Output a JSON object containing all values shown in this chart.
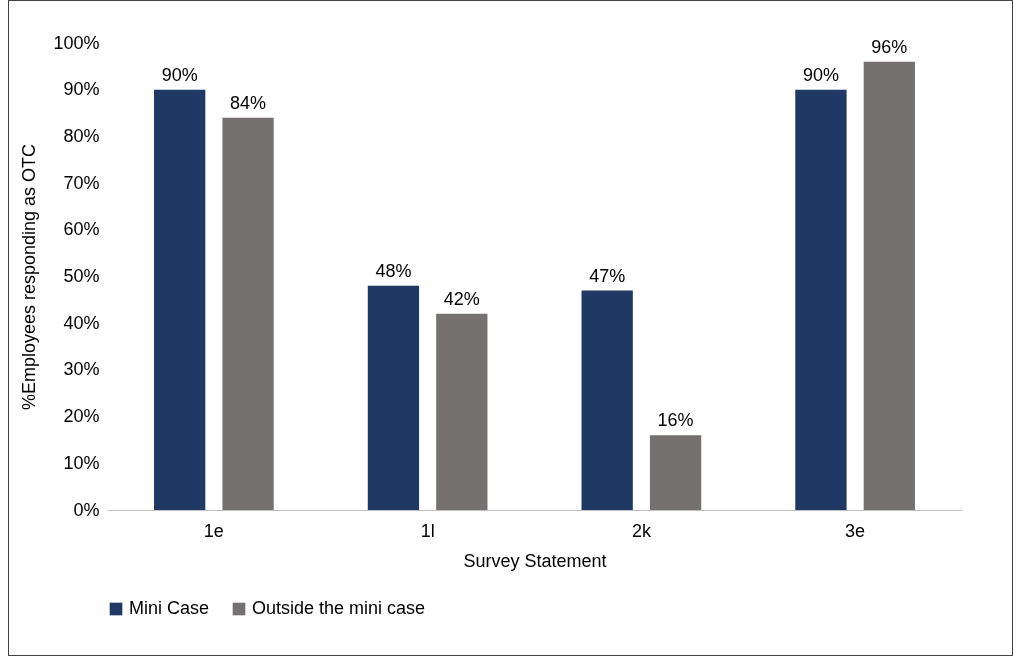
{
  "chart_data": {
    "type": "bar",
    "xlabel": "Survey Statement",
    "ylabel": "%Employees responding as OTC",
    "categories": [
      "1e",
      "1l",
      "2k",
      "3e"
    ],
    "series": [
      {
        "name": "Mini Case",
        "color": "#1f3864",
        "values": [
          90,
          48,
          47,
          90
        ],
        "value_labels": [
          "90%",
          "48%",
          "47%",
          "90%"
        ]
      },
      {
        "name": "Outside the mini case",
        "color": "#767171",
        "values": [
          84,
          42,
          16,
          96
        ],
        "value_labels": [
          "84%",
          "42%",
          "16%",
          "96%"
        ]
      }
    ],
    "ylim": [
      0,
      100
    ],
    "yticks": [
      {
        "value": 0,
        "label": "0%"
      },
      {
        "value": 10,
        "label": "10%"
      },
      {
        "value": 20,
        "label": "20%"
      },
      {
        "value": 30,
        "label": "30%"
      },
      {
        "value": 40,
        "label": "40%"
      },
      {
        "value": 50,
        "label": "50%"
      },
      {
        "value": 60,
        "label": "60%"
      },
      {
        "value": 70,
        "label": "70%"
      },
      {
        "value": 80,
        "label": "80%"
      },
      {
        "value": 90,
        "label": "90%"
      },
      {
        "value": 100,
        "label": "100%"
      }
    ],
    "grid": false,
    "legend": "bottom"
  }
}
